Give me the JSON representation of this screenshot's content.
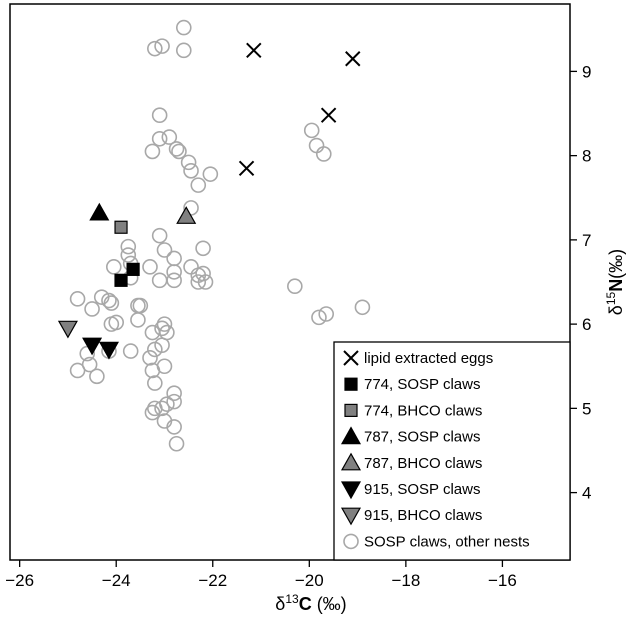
{
  "chart_data": {
    "type": "scatter",
    "title": "",
    "xlabel": {
      "prefix": "δ",
      "sup": "13",
      "main": "C",
      "unit": " (‰)"
    },
    "ylabel": {
      "prefix": "δ",
      "sup": "15",
      "main": "N",
      "unit": "(‰)"
    },
    "xlim": [
      -26.2,
      -14.6
    ],
    "ylim": [
      3.2,
      9.8
    ],
    "xticks": [
      -26,
      -24,
      -22,
      -20,
      -18,
      -16
    ],
    "yticks": [
      4,
      5,
      6,
      7,
      8,
      9
    ],
    "x_tick_labels": [
      "−26",
      "−24",
      "−22",
      "−20",
      "−18",
      "−16"
    ],
    "y_tick_labels": [
      "4",
      "5",
      "6",
      "7",
      "8",
      "9"
    ],
    "y_axis_side": "right",
    "grid": false,
    "legend_position": "bottom-right",
    "series": [
      {
        "name": "SOSP claws, other nests",
        "marker": "circle-open",
        "color": "#a8a8a8",
        "points": [
          [
            -22.6,
            9.52
          ],
          [
            -23.2,
            9.27
          ],
          [
            -23.05,
            9.3
          ],
          [
            -22.6,
            9.25
          ],
          [
            -23.1,
            8.48
          ],
          [
            -23.1,
            8.2
          ],
          [
            -22.9,
            8.22
          ],
          [
            -23.25,
            8.05
          ],
          [
            -22.75,
            8.08
          ],
          [
            -22.7,
            8.05
          ],
          [
            -22.5,
            7.92
          ],
          [
            -22.45,
            7.82
          ],
          [
            -22.3,
            7.65
          ],
          [
            -22.05,
            7.78
          ],
          [
            -22.45,
            7.38
          ],
          [
            -23.1,
            7.05
          ],
          [
            -23.75,
            6.92
          ],
          [
            -23.75,
            6.82
          ],
          [
            -23.7,
            6.72
          ],
          [
            -23.0,
            6.88
          ],
          [
            -22.2,
            6.9
          ],
          [
            -22.8,
            6.78
          ],
          [
            -23.3,
            6.68
          ],
          [
            -22.45,
            6.68
          ],
          [
            -22.3,
            6.58
          ],
          [
            -22.2,
            6.6
          ],
          [
            -22.8,
            6.62
          ],
          [
            -22.3,
            6.5
          ],
          [
            -22.15,
            6.5
          ],
          [
            -22.8,
            6.52
          ],
          [
            -23.1,
            6.52
          ],
          [
            -24.05,
            6.68
          ],
          [
            -23.7,
            6.55
          ],
          [
            -24.8,
            6.3
          ],
          [
            -24.3,
            6.32
          ],
          [
            -24.15,
            6.28
          ],
          [
            -24.1,
            6.25
          ],
          [
            -24.5,
            6.18
          ],
          [
            -23.55,
            6.22
          ],
          [
            -23.5,
            6.22
          ],
          [
            -23.55,
            6.05
          ],
          [
            -23.0,
            6.0
          ],
          [
            -23.05,
            5.95
          ],
          [
            -22.95,
            5.9
          ],
          [
            -23.25,
            5.9
          ],
          [
            -24.1,
            6.0
          ],
          [
            -24.0,
            6.02
          ],
          [
            -23.05,
            5.75
          ],
          [
            -23.2,
            5.7
          ],
          [
            -23.7,
            5.68
          ],
          [
            -23.3,
            5.6
          ],
          [
            -24.6,
            5.65
          ],
          [
            -24.15,
            5.68
          ],
          [
            -23.25,
            5.45
          ],
          [
            -23.0,
            5.5
          ],
          [
            -23.2,
            5.3
          ],
          [
            -24.55,
            5.52
          ],
          [
            -24.8,
            5.45
          ],
          [
            -24.4,
            5.38
          ],
          [
            -22.8,
            5.18
          ],
          [
            -22.8,
            5.08
          ],
          [
            -22.95,
            5.05
          ],
          [
            -23.05,
            5.0
          ],
          [
            -23.2,
            5.0
          ],
          [
            -23.25,
            4.95
          ],
          [
            -23.0,
            4.85
          ],
          [
            -22.8,
            4.78
          ],
          [
            -22.75,
            4.58
          ],
          [
            -20.3,
            6.45
          ],
          [
            -19.65,
            6.12
          ],
          [
            -19.8,
            6.08
          ],
          [
            -18.9,
            6.2
          ],
          [
            -19.95,
            8.3
          ],
          [
            -19.85,
            8.12
          ],
          [
            -19.7,
            8.02
          ]
        ]
      },
      {
        "name": "lipid extracted eggs",
        "marker": "x",
        "color": "#000000",
        "points": [
          [
            -21.15,
            9.25
          ],
          [
            -19.1,
            9.15
          ],
          [
            -19.6,
            8.48
          ],
          [
            -21.3,
            7.85
          ]
        ]
      },
      {
        "name": "774, SOSP claws",
        "marker": "square",
        "color": "#000000",
        "points": [
          [
            -23.65,
            6.65
          ],
          [
            -23.9,
            6.52
          ]
        ]
      },
      {
        "name": "774, BHCO claws",
        "marker": "square",
        "color": "#808080",
        "points": [
          [
            -23.9,
            7.15
          ]
        ]
      },
      {
        "name": "787, SOSP claws",
        "marker": "triangle-up",
        "color": "#000000",
        "points": [
          [
            -24.35,
            7.32
          ]
        ]
      },
      {
        "name": "787, BHCO claws",
        "marker": "triangle-up",
        "color": "#808080",
        "points": [
          [
            -22.55,
            7.28
          ]
        ]
      },
      {
        "name": "915, SOSP claws",
        "marker": "triangle-down",
        "color": "#000000",
        "points": [
          [
            -24.5,
            5.75
          ],
          [
            -24.15,
            5.7
          ]
        ]
      },
      {
        "name": "915, BHCO claws",
        "marker": "triangle-down",
        "color": "#808080",
        "points": [
          [
            -25.0,
            5.95
          ]
        ]
      }
    ],
    "legend_order": [
      "lipid extracted eggs",
      "774, SOSP claws",
      "774, BHCO claws",
      "787, SOSP claws",
      "787, BHCO claws",
      "915, SOSP claws",
      "915, BHCO claws",
      "SOSP claws, other nests"
    ]
  }
}
